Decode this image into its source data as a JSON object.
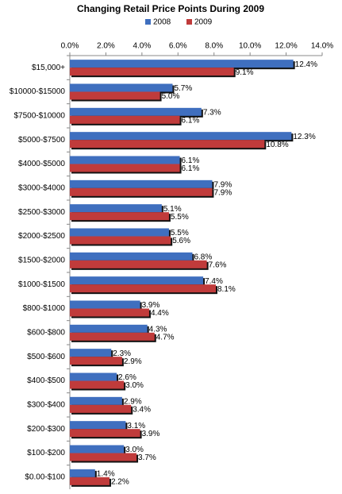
{
  "chart_data": {
    "type": "hbar",
    "title": "Changing Retail Price Points During 2009",
    "categories": [
      "$15,000+",
      "$10000-$15000",
      "$7500-$10000",
      "$5000-$7500",
      "$4000-$5000",
      "$3000-$4000",
      "$2500-$3000",
      "$2000-$2500",
      "$1500-$2000",
      "$1000-$1500",
      "$800-$1000",
      "$600-$800",
      "$500-$600",
      "$400-$500",
      "$300-$400",
      "$200-$300",
      "$100-$200",
      "$0.00-$100"
    ],
    "series": [
      {
        "name": "2008",
        "color": "#3f6fbf",
        "values": [
          12.4,
          5.7,
          7.3,
          12.3,
          6.1,
          7.9,
          5.1,
          5.5,
          6.8,
          7.4,
          3.9,
          4.3,
          2.3,
          2.6,
          2.9,
          3.1,
          3.0,
          1.4
        ],
        "value_labels": [
          "12.4%",
          "5.7%",
          "7.3%",
          "12.3%",
          "6.1%",
          "7.9%",
          "5.1%",
          "5.5%",
          "6.8%",
          "7.4%",
          "3.9%",
          "4.3%",
          "2.3%",
          "2.6%",
          "2.9%",
          "3.1%",
          "3.0%",
          "1.4%"
        ]
      },
      {
        "name": "2009",
        "color": "#c03b3b",
        "values": [
          9.1,
          5.0,
          6.1,
          10.8,
          6.1,
          7.9,
          5.5,
          5.6,
          7.6,
          8.1,
          4.4,
          4.7,
          2.9,
          3.0,
          3.4,
          3.9,
          3.7,
          2.2
        ],
        "value_labels": [
          "9.1%",
          "5.0%",
          "6.1%",
          "10.8%",
          "6.1%",
          "7.9%",
          "5.5%",
          "5.6%",
          "7.6%",
          "8.1%",
          "4.4%",
          "4.7%",
          "2.9%",
          "3.0%",
          "3.4%",
          "3.9%",
          "3.7%",
          "2.2%"
        ]
      }
    ],
    "xlim": [
      0,
      14
    ],
    "xticks": [
      {
        "value": 0,
        "label": "0.0%"
      },
      {
        "value": 2,
        "label": "2.0%"
      },
      {
        "value": 4,
        "label": "4.0%"
      },
      {
        "value": 6,
        "label": "6.0%"
      },
      {
        "value": 8,
        "label": "8.0%"
      },
      {
        "value": 10,
        "label": "10.0%"
      },
      {
        "value": 12,
        "label": "12.0%"
      },
      {
        "value": 14,
        "label": "14.0%"
      }
    ],
    "legend": "top"
  }
}
